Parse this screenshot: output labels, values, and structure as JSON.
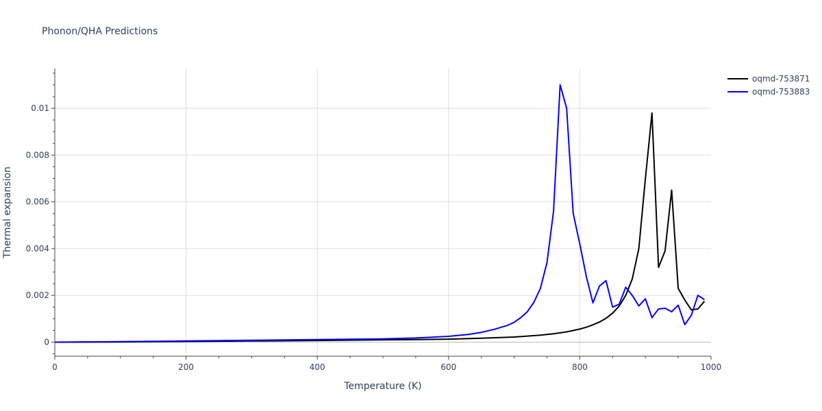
{
  "chart_data": {
    "type": "line",
    "title": "Phonon/QHA Predictions",
    "xlabel": "Temperature (K)",
    "ylabel": "Thermal expansion",
    "xlim": [
      0,
      1000
    ],
    "ylim": [
      -0.0006,
      0.0117
    ],
    "grid": true,
    "legend_position": "top-right",
    "x_ticks": [
      "0",
      "200",
      "400",
      "600",
      "800",
      "1000"
    ],
    "x_tick_values": [
      0,
      200,
      400,
      600,
      800,
      1000
    ],
    "y_ticks": [
      "0",
      "0.002",
      "0.004",
      "0.006",
      "0.008",
      "0.01"
    ],
    "y_tick_values": [
      0,
      0.002,
      0.004,
      0.006,
      0.008,
      0.01
    ],
    "series": [
      {
        "name": "oqmd-753871",
        "color": "#000000",
        "x": [
          0,
          100,
          200,
          300,
          400,
          500,
          550,
          600,
          650,
          700,
          740,
          760,
          780,
          800,
          810,
          820,
          830,
          840,
          850,
          860,
          870,
          880,
          890,
          900,
          910,
          920,
          930,
          940,
          950,
          960,
          970,
          980,
          990
        ],
        "y": [
          0,
          1e-05,
          3e-05,
          5e-05,
          7e-05,
          0.0001,
          0.00011,
          0.00013,
          0.00017,
          0.00022,
          0.0003,
          0.00036,
          0.00044,
          0.00056,
          0.00064,
          0.00074,
          0.00086,
          0.00102,
          0.00124,
          0.00154,
          0.002,
          0.0027,
          0.004,
          0.007,
          0.0098,
          0.0032,
          0.0039,
          0.0065,
          0.0023,
          0.0018,
          0.00138,
          0.00142,
          0.00175
        ]
      },
      {
        "name": "oqmd-753883",
        "color": "#0000ff",
        "x": [
          0,
          100,
          200,
          300,
          400,
          500,
          550,
          600,
          630,
          650,
          670,
          690,
          700,
          710,
          720,
          730,
          740,
          750,
          760,
          770,
          780,
          790,
          800,
          810,
          820,
          830,
          840,
          850,
          860,
          870,
          880,
          890,
          900,
          910,
          920,
          930,
          940,
          950,
          960,
          970,
          980,
          990
        ],
        "y": [
          0,
          2e-05,
          5e-05,
          8e-05,
          0.00011,
          0.00014,
          0.00018,
          0.00025,
          0.00033,
          0.00042,
          0.00055,
          0.00072,
          0.00085,
          0.00105,
          0.0013,
          0.0017,
          0.0023,
          0.0034,
          0.0056,
          0.011,
          0.01,
          0.0055,
          0.0042,
          0.0028,
          0.00168,
          0.0024,
          0.00263,
          0.0015,
          0.00162,
          0.00235,
          0.002,
          0.00155,
          0.00185,
          0.00105,
          0.00142,
          0.00145,
          0.0013,
          0.00158,
          0.00075,
          0.00115,
          0.002,
          0.00182
        ]
      }
    ]
  }
}
